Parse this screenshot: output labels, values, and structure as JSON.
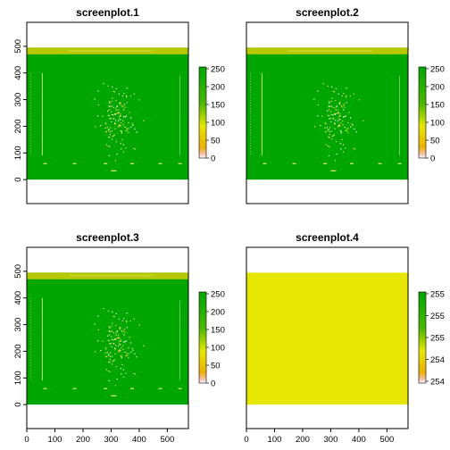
{
  "colors": {
    "raster_green": "#00a600",
    "raster_yellow": "#e6e600",
    "banner_yellow": "#b8c800",
    "frame": "#000000",
    "background": "#ffffff"
  },
  "chart_data": [
    {
      "type": "heatmap",
      "title": "screenplot.1",
      "xlim": [
        0,
        575
      ],
      "ylim": [
        -90,
        590
      ],
      "raster_extent": {
        "x": [
          0,
          575
        ],
        "y": [
          0,
          495
        ]
      },
      "x_ticks": [],
      "y_ticks": [
        0,
        100,
        200,
        300,
        400,
        500
      ],
      "fill": "green",
      "has_content": true,
      "legend": {
        "position": "right",
        "ticks": [
          0,
          50,
          100,
          150,
          200,
          250
        ],
        "range": [
          0,
          255
        ]
      }
    },
    {
      "type": "heatmap",
      "title": "screenplot.2",
      "xlim": [
        0,
        575
      ],
      "ylim": [
        -90,
        590
      ],
      "raster_extent": {
        "x": [
          0,
          575
        ],
        "y": [
          0,
          495
        ]
      },
      "x_ticks": [],
      "y_ticks": [],
      "fill": "green",
      "has_content": true,
      "legend": {
        "position": "right",
        "ticks": [
          0,
          50,
          100,
          150,
          200,
          250
        ],
        "range": [
          0,
          255
        ]
      }
    },
    {
      "type": "heatmap",
      "title": "screenplot.3",
      "xlim": [
        0,
        575
      ],
      "ylim": [
        -90,
        590
      ],
      "raster_extent": {
        "x": [
          0,
          575
        ],
        "y": [
          0,
          495
        ]
      },
      "x_ticks": [
        0,
        100,
        200,
        300,
        400,
        500
      ],
      "y_ticks": [
        0,
        100,
        200,
        300,
        400,
        500
      ],
      "fill": "green",
      "has_content": true,
      "legend": {
        "position": "right",
        "ticks": [
          0,
          50,
          100,
          150,
          200,
          250
        ],
        "range": [
          0,
          255
        ]
      }
    },
    {
      "type": "heatmap",
      "title": "screenplot.4",
      "xlim": [
        0,
        575
      ],
      "ylim": [
        -90,
        590
      ],
      "raster_extent": {
        "x": [
          0,
          575
        ],
        "y": [
          0,
          495
        ]
      },
      "x_ticks": [
        0,
        100,
        200,
        300,
        400,
        500
      ],
      "y_ticks": [],
      "fill": "yellow",
      "has_content": false,
      "legend": {
        "position": "right",
        "ticks": [
          "254",
          "254",
          "255",
          "255",
          "255"
        ],
        "range": [
          254,
          255
        ]
      }
    }
  ]
}
